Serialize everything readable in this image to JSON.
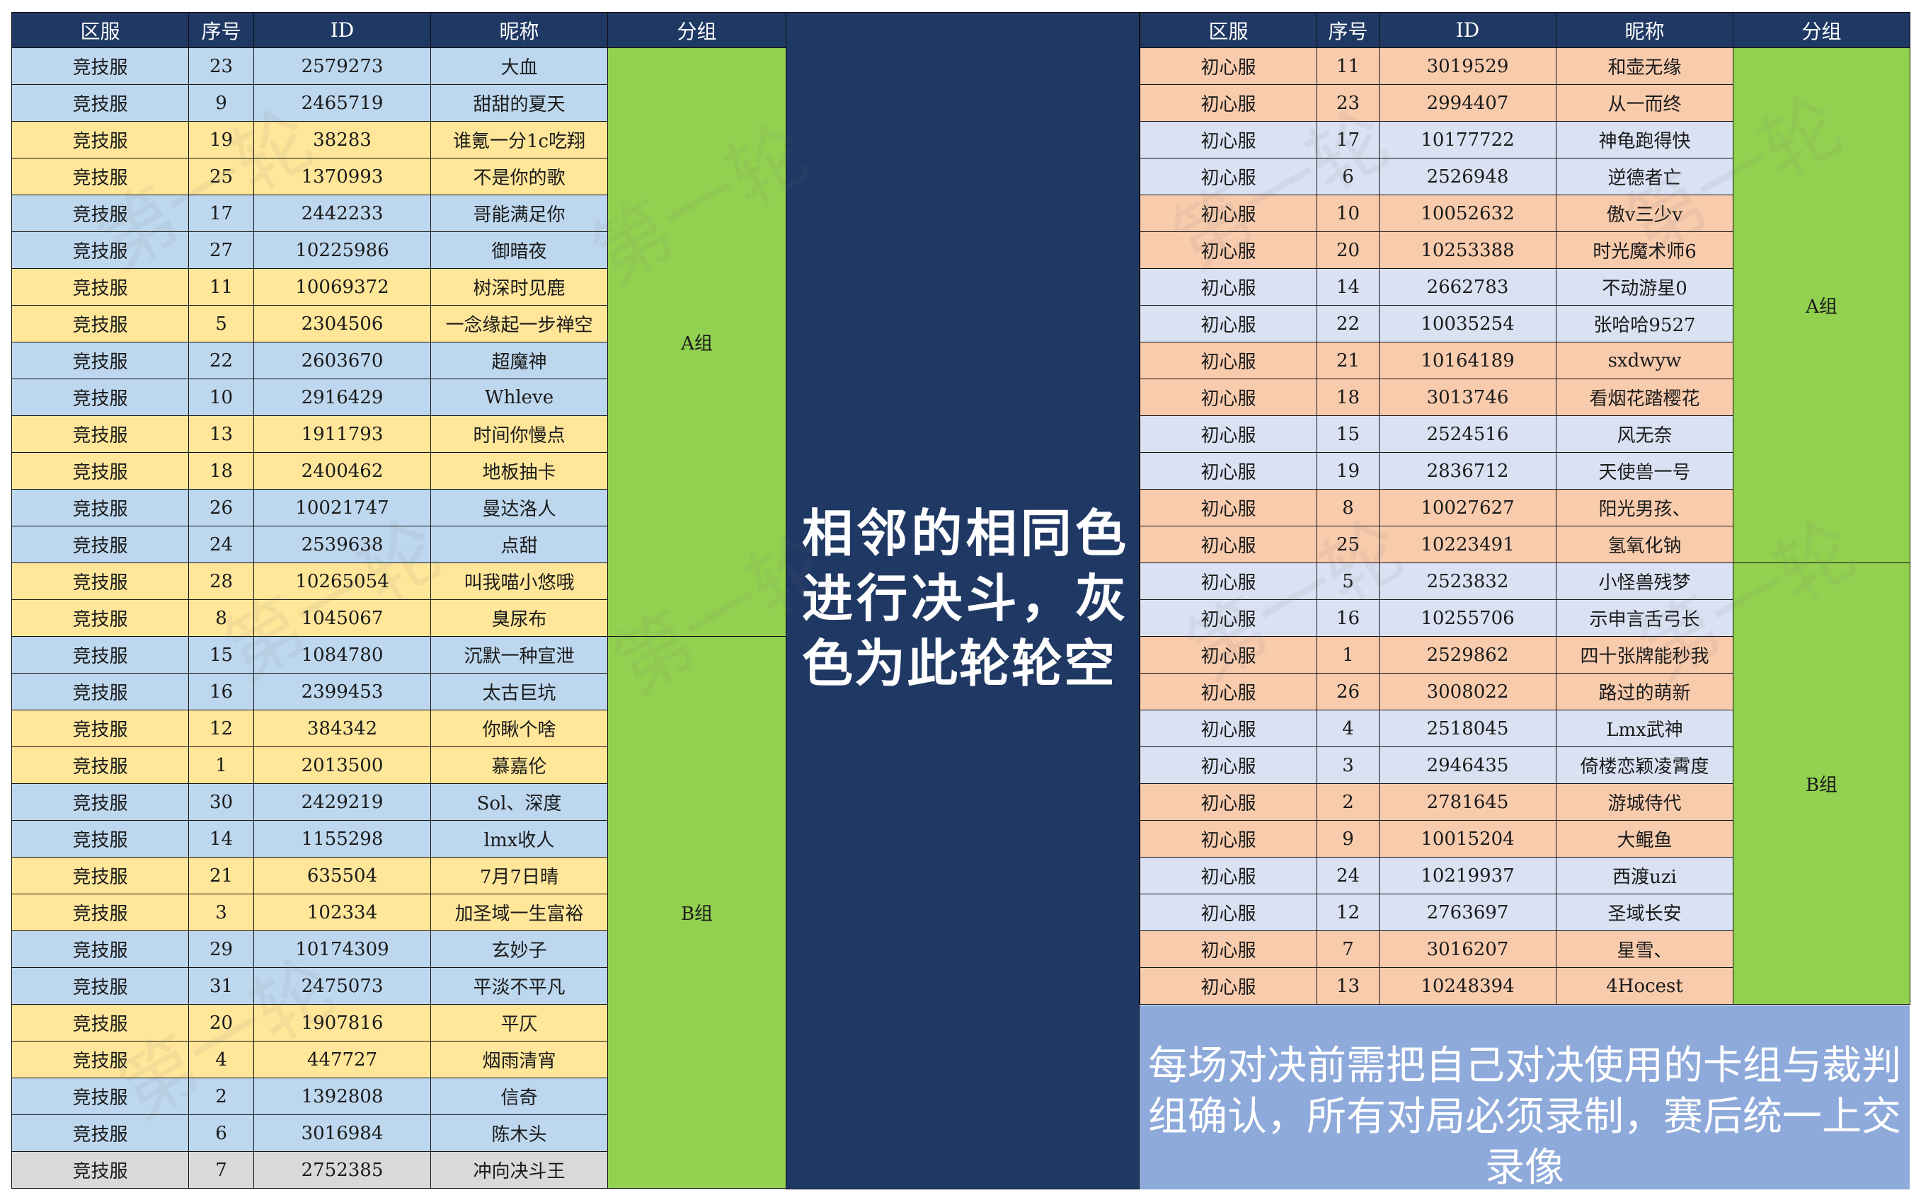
{
  "headers": [
    "区服",
    "序号",
    "ID",
    "昵称",
    "分组"
  ],
  "watermark": "第一轮",
  "colors": {
    "header_bg": "#1f3864",
    "blue": "#bdd7ee",
    "yellow": "#ffe699",
    "gray": "#d9d9d9",
    "orange": "#f8cbad",
    "lavender": "#d9e1f2",
    "group_green": "#92d050",
    "note_bg": "#8eaadb"
  },
  "left_table": {
    "groups": [
      {
        "label": "A组",
        "rows": 16
      },
      {
        "label": "B组",
        "rows": 15
      }
    ],
    "rows": [
      {
        "server": "竞技服",
        "seq": "23",
        "id": "2579273",
        "name": "大血",
        "color": "blue"
      },
      {
        "server": "竞技服",
        "seq": "9",
        "id": "2465719",
        "name": "甜甜的夏天",
        "color": "blue"
      },
      {
        "server": "竞技服",
        "seq": "19",
        "id": "38283",
        "name": "谁氪一分1c吃翔",
        "color": "yellow"
      },
      {
        "server": "竞技服",
        "seq": "25",
        "id": "1370993",
        "name": "不是你的歌",
        "color": "yellow"
      },
      {
        "server": "竞技服",
        "seq": "17",
        "id": "2442233",
        "name": "哥能满足你",
        "color": "blue"
      },
      {
        "server": "竞技服",
        "seq": "27",
        "id": "10225986",
        "name": "御暗夜",
        "color": "blue"
      },
      {
        "server": "竞技服",
        "seq": "11",
        "id": "10069372",
        "name": "树深时见鹿",
        "color": "yellow"
      },
      {
        "server": "竞技服",
        "seq": "5",
        "id": "2304506",
        "name": "一念缘起一步禅空",
        "color": "yellow"
      },
      {
        "server": "竞技服",
        "seq": "22",
        "id": "2603670",
        "name": "超魔神",
        "color": "blue"
      },
      {
        "server": "竞技服",
        "seq": "10",
        "id": "2916429",
        "name": "Whleve",
        "color": "blue"
      },
      {
        "server": "竞技服",
        "seq": "13",
        "id": "1911793",
        "name": "时间你慢点",
        "color": "yellow"
      },
      {
        "server": "竞技服",
        "seq": "18",
        "id": "2400462",
        "name": "地板抽卡",
        "color": "yellow"
      },
      {
        "server": "竞技服",
        "seq": "26",
        "id": "10021747",
        "name": "曼达洛人",
        "color": "blue"
      },
      {
        "server": "竞技服",
        "seq": "24",
        "id": "2539638",
        "name": "点甜",
        "color": "blue"
      },
      {
        "server": "竞技服",
        "seq": "28",
        "id": "10265054",
        "name": "叫我喵小悠哦",
        "color": "yellow"
      },
      {
        "server": "竞技服",
        "seq": "8",
        "id": "1045067",
        "name": "臭尿布",
        "color": "yellow"
      },
      {
        "server": "竞技服",
        "seq": "15",
        "id": "1084780",
        "name": "沉默一种宣泄",
        "color": "blue"
      },
      {
        "server": "竞技服",
        "seq": "16",
        "id": "2399453",
        "name": "太古巨坑",
        "color": "blue"
      },
      {
        "server": "竞技服",
        "seq": "12",
        "id": "384342",
        "name": "你瞅个啥",
        "color": "yellow"
      },
      {
        "server": "竞技服",
        "seq": "1",
        "id": "2013500",
        "name": "慕嘉伦",
        "color": "yellow"
      },
      {
        "server": "竞技服",
        "seq": "30",
        "id": "2429219",
        "name": "Sol、深度",
        "color": "blue"
      },
      {
        "server": "竞技服",
        "seq": "14",
        "id": "1155298",
        "name": "lmx收人",
        "color": "blue"
      },
      {
        "server": "竞技服",
        "seq": "21",
        "id": "635504",
        "name": "7月7日晴",
        "color": "yellow"
      },
      {
        "server": "竞技服",
        "seq": "3",
        "id": "102334",
        "name": "加圣域一生富裕",
        "color": "yellow"
      },
      {
        "server": "竞技服",
        "seq": "29",
        "id": "10174309",
        "name": "玄妙子",
        "color": "blue"
      },
      {
        "server": "竞技服",
        "seq": "31",
        "id": "2475073",
        "name": "平淡不平凡",
        "color": "blue"
      },
      {
        "server": "竞技服",
        "seq": "20",
        "id": "1907816",
        "name": "平仄",
        "color": "yellow"
      },
      {
        "server": "竞技服",
        "seq": "4",
        "id": "447727",
        "name": "烟雨清宵",
        "color": "yellow"
      },
      {
        "server": "竞技服",
        "seq": "2",
        "id": "1392808",
        "name": "信奇",
        "color": "blue"
      },
      {
        "server": "竞技服",
        "seq": "6",
        "id": "3016984",
        "name": "陈木头",
        "color": "blue"
      },
      {
        "server": "竞技服",
        "seq": "7",
        "id": "2752385",
        "name": "冲向决斗王",
        "color": "gray"
      }
    ]
  },
  "center_text": "相邻的相同色进行决斗，灰色为此轮轮空",
  "right_table": {
    "groups": [
      {
        "label": "A组",
        "rows": 14
      },
      {
        "label": "B组",
        "rows": 12
      }
    ],
    "rows": [
      {
        "server": "初心服",
        "seq": "11",
        "id": "3019529",
        "name": "和壶无缘",
        "color": "orange"
      },
      {
        "server": "初心服",
        "seq": "23",
        "id": "2994407",
        "name": "从一而终",
        "color": "orange"
      },
      {
        "server": "初心服",
        "seq": "17",
        "id": "10177722",
        "name": "神龟跑得快",
        "color": "lav"
      },
      {
        "server": "初心服",
        "seq": "6",
        "id": "2526948",
        "name": "逆德者亡",
        "color": "lav"
      },
      {
        "server": "初心服",
        "seq": "10",
        "id": "10052632",
        "name": "傲v三少v",
        "color": "orange"
      },
      {
        "server": "初心服",
        "seq": "20",
        "id": "10253388",
        "name": "时光魔术师6",
        "color": "orange"
      },
      {
        "server": "初心服",
        "seq": "14",
        "id": "2662783",
        "name": "不动游星0",
        "color": "lav"
      },
      {
        "server": "初心服",
        "seq": "22",
        "id": "10035254",
        "name": "张哈哈9527",
        "color": "lav"
      },
      {
        "server": "初心服",
        "seq": "21",
        "id": "10164189",
        "name": "sxdwyw",
        "color": "orange"
      },
      {
        "server": "初心服",
        "seq": "18",
        "id": "3013746",
        "name": "看烟花踏樱花",
        "color": "orange"
      },
      {
        "server": "初心服",
        "seq": "15",
        "id": "2524516",
        "name": "风无奈",
        "color": "lav"
      },
      {
        "server": "初心服",
        "seq": "19",
        "id": "2836712",
        "name": "天使兽一号",
        "color": "lav"
      },
      {
        "server": "初心服",
        "seq": "8",
        "id": "10027627",
        "name": "阳光男孩、",
        "color": "orange"
      },
      {
        "server": "初心服",
        "seq": "25",
        "id": "10223491",
        "name": "氢氧化钠",
        "color": "orange"
      },
      {
        "server": "初心服",
        "seq": "5",
        "id": "2523832",
        "name": "小怪兽残梦",
        "color": "lav"
      },
      {
        "server": "初心服",
        "seq": "16",
        "id": "10255706",
        "name": "示申言舌弓长",
        "color": "lav"
      },
      {
        "server": "初心服",
        "seq": "1",
        "id": "2529862",
        "name": "四十张牌能秒我",
        "color": "orange"
      },
      {
        "server": "初心服",
        "seq": "26",
        "id": "3008022",
        "name": "路过的萌新",
        "color": "orange"
      },
      {
        "server": "初心服",
        "seq": "4",
        "id": "2518045",
        "name": "Lmx武神",
        "color": "lav"
      },
      {
        "server": "初心服",
        "seq": "3",
        "id": "2946435",
        "name": "倚楼恋颖凌霄度",
        "color": "lav"
      },
      {
        "server": "初心服",
        "seq": "2",
        "id": "2781645",
        "name": "游城侍代",
        "color": "orange"
      },
      {
        "server": "初心服",
        "seq": "9",
        "id": "10015204",
        "name": "大鲲鱼",
        "color": "orange"
      },
      {
        "server": "初心服",
        "seq": "24",
        "id": "10219937",
        "name": "西渡uzi",
        "color": "lav"
      },
      {
        "server": "初心服",
        "seq": "12",
        "id": "2763697",
        "name": "圣域长安",
        "color": "lav"
      },
      {
        "server": "初心服",
        "seq": "7",
        "id": "3016207",
        "name": "星雪、",
        "color": "orange"
      },
      {
        "server": "初心服",
        "seq": "13",
        "id": "10248394",
        "name": "4Hocest",
        "color": "orange"
      }
    ]
  },
  "note_text": "每场对决前需把自己对决使用的卡组与裁判组确认，所有对局必须录制，赛后统一上交录像"
}
